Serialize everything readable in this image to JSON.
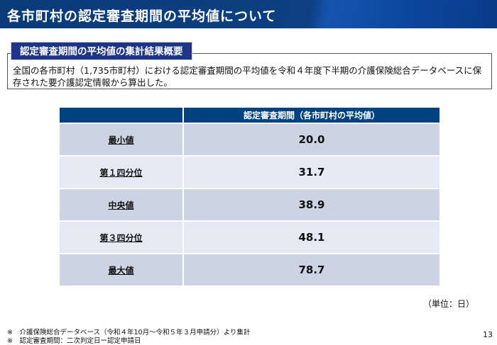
{
  "header": {
    "title": "各市町村の認定審査期間の平均値について"
  },
  "summary": {
    "label": "認定審査期間の平均値の集計結果概要",
    "text": "全国の各市町村（1,735市町村）における認定審査期間の平均値を令和４年度下半期の介護保険総合データベースに保存された要介護認定情報から算出した。"
  },
  "table": {
    "column_header": "認定審査期間（各市町村の平均値）",
    "rows": [
      {
        "label": "最小値",
        "value": "20.0"
      },
      {
        "label": "第１四分位",
        "value": "31.7"
      },
      {
        "label": "中央値",
        "value": "38.9"
      },
      {
        "label": "第３四分位",
        "value": "48.1"
      },
      {
        "label": "最大値",
        "value": "78.7"
      }
    ]
  },
  "unit": "（単位：日）",
  "notes": [
    "※　介護保険総合データベース（令和４年10月～令和５年３月申請分）より集計",
    "※　認定審査期間：二次判定日ー認定申請日"
  ],
  "page_number": "13"
}
